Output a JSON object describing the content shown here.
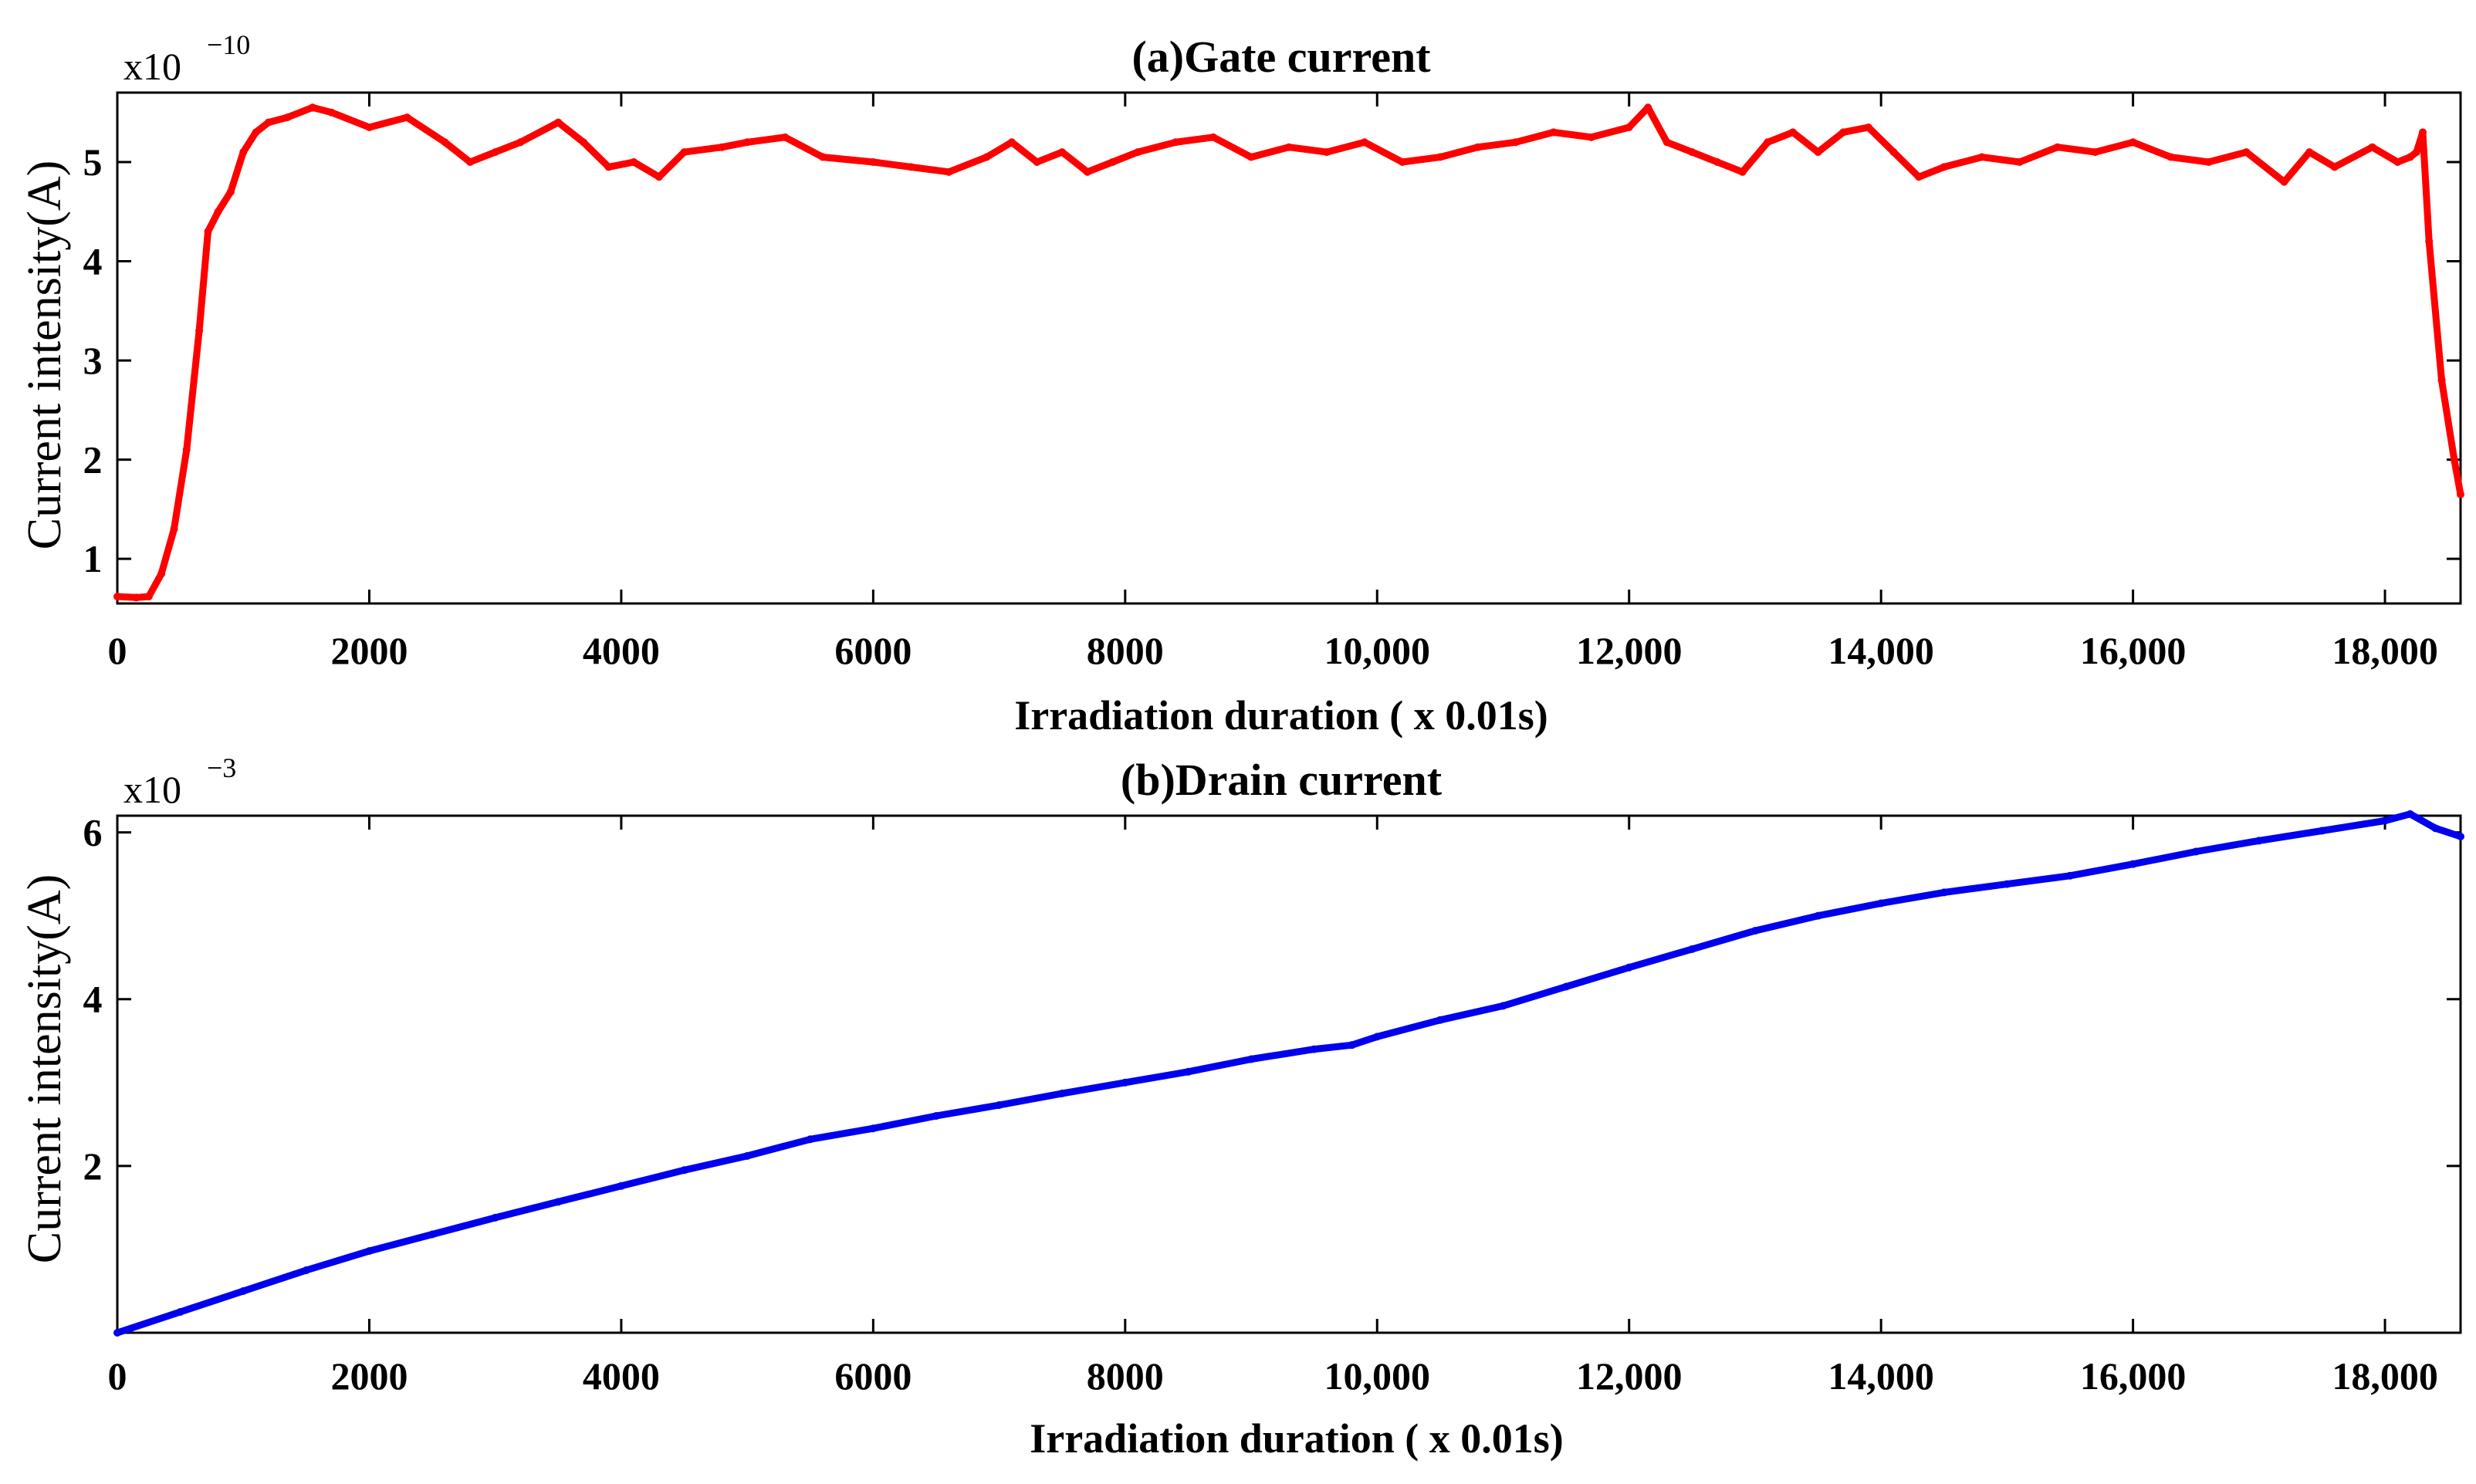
{
  "chart_data": [
    {
      "type": "line",
      "title": "(a)Gate current",
      "xlabel": "Irradiation duration ( x 0.01s)",
      "ylabel": "Current intensity(A)",
      "multiplier_base": "x10",
      "multiplier_exp": "−10",
      "xlim": [
        0,
        18600
      ],
      "ylim": [
        0.55,
        5.7
      ],
      "xticks": [
        0,
        2000,
        4000,
        6000,
        8000,
        10000,
        12000,
        14000,
        16000,
        18000
      ],
      "xtick_labels": [
        "0",
        "2000",
        "4000",
        "6000",
        "8000",
        "10,000",
        "12,000",
        "14,000",
        "16,000",
        "18,000"
      ],
      "yticks": [
        1,
        2,
        3,
        4,
        5
      ],
      "ytick_labels": [
        "1",
        "2",
        "3",
        "4",
        "5"
      ],
      "series": [
        {
          "name": "Gate current",
          "color": "#ff0000",
          "x": [
            0,
            150,
            250,
            350,
            450,
            550,
            650,
            720,
            800,
            900,
            1000,
            1100,
            1200,
            1350,
            1550,
            1700,
            2000,
            2300,
            2600,
            2800,
            3000,
            3200,
            3500,
            3700,
            3900,
            4100,
            4300,
            4500,
            4800,
            5000,
            5300,
            5600,
            6000,
            6300,
            6600,
            6900,
            7100,
            7300,
            7500,
            7700,
            7900,
            8100,
            8400,
            8700,
            9000,
            9300,
            9600,
            9900,
            10200,
            10500,
            10800,
            11100,
            11400,
            11700,
            12000,
            12150,
            12300,
            12500,
            12700,
            12900,
            13100,
            13300,
            13500,
            13700,
            13900,
            14100,
            14300,
            14500,
            14800,
            15100,
            15400,
            15700,
            16000,
            16300,
            16600,
            16900,
            17200,
            17400,
            17600,
            17900,
            18100,
            18200,
            18250,
            18300,
            18350,
            18450,
            18550,
            18600
          ],
          "y": [
            0.62,
            0.61,
            0.62,
            0.85,
            1.3,
            2.1,
            3.3,
            4.3,
            4.5,
            4.7,
            5.1,
            5.3,
            5.4,
            5.45,
            5.55,
            5.5,
            5.35,
            5.45,
            5.2,
            5.0,
            5.1,
            5.2,
            5.4,
            5.2,
            4.95,
            5.0,
            4.85,
            5.1,
            5.15,
            5.2,
            5.25,
            5.05,
            5.0,
            4.95,
            4.9,
            5.05,
            5.2,
            5.0,
            5.1,
            4.9,
            5.0,
            5.1,
            5.2,
            5.25,
            5.05,
            5.15,
            5.1,
            5.2,
            5.0,
            5.05,
            5.15,
            5.2,
            5.3,
            5.25,
            5.35,
            5.55,
            5.2,
            5.1,
            5.0,
            4.9,
            5.2,
            5.3,
            5.1,
            5.3,
            5.35,
            5.1,
            4.85,
            4.95,
            5.05,
            5.0,
            5.15,
            5.1,
            5.2,
            5.05,
            5.0,
            5.1,
            4.8,
            5.1,
            4.95,
            5.15,
            5.0,
            5.05,
            5.1,
            5.3,
            4.2,
            2.8,
            2.0,
            1.65
          ]
        }
      ]
    },
    {
      "type": "line",
      "title": "(b)Drain current",
      "xlabel": "Irradiation duration ( x 0.01s)",
      "ylabel": "Current intensity(A)",
      "multiplier_base": "x10",
      "multiplier_exp": "−3",
      "xlim": [
        0,
        18600
      ],
      "ylim": [
        0,
        6.2
      ],
      "xticks": [
        0,
        2000,
        4000,
        6000,
        8000,
        10000,
        12000,
        14000,
        16000,
        18000
      ],
      "xtick_labels": [
        "0",
        "2000",
        "4000",
        "6000",
        "8000",
        "10,000",
        "12,000",
        "14,000",
        "16,000",
        "18,000"
      ],
      "yticks": [
        2,
        4,
        6
      ],
      "ytick_labels": [
        "2",
        "4",
        "6"
      ],
      "series": [
        {
          "name": "Drain current",
          "color": "#0000ee",
          "x": [
            0,
            500,
            1000,
            1500,
            2000,
            2500,
            3000,
            3500,
            4000,
            4500,
            5000,
            5500,
            6000,
            6500,
            7000,
            7500,
            8000,
            8500,
            9000,
            9500,
            9800,
            10000,
            10500,
            11000,
            11500,
            12000,
            12500,
            13000,
            13500,
            14000,
            14500,
            15000,
            15500,
            16000,
            16500,
            17000,
            17500,
            18000,
            18200,
            18400,
            18600
          ],
          "y": [
            0.0,
            0.25,
            0.5,
            0.75,
            0.98,
            1.18,
            1.38,
            1.57,
            1.76,
            1.95,
            2.12,
            2.32,
            2.45,
            2.6,
            2.73,
            2.87,
            3.0,
            3.13,
            3.28,
            3.4,
            3.45,
            3.55,
            3.75,
            3.92,
            4.15,
            4.38,
            4.6,
            4.82,
            5.0,
            5.15,
            5.28,
            5.38,
            5.48,
            5.62,
            5.77,
            5.9,
            6.02,
            6.14,
            6.22,
            6.05,
            5.95
          ]
        }
      ]
    }
  ]
}
